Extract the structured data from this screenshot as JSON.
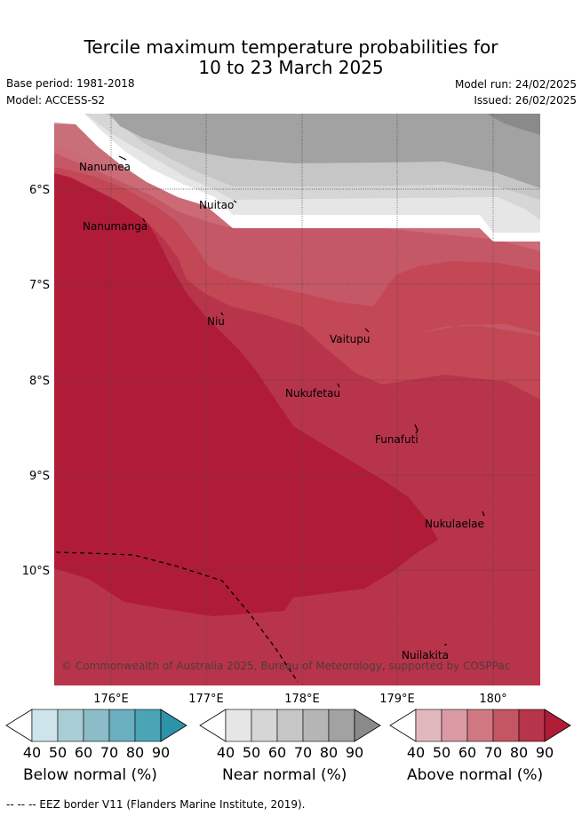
{
  "title_line1": "Tercile maximum temperature probabilities for",
  "title_line2": "10 to 23 March 2025",
  "base_period": "Base period: 1981-2018",
  "model": "Model: ACCESS-S2",
  "model_run": "Model run: 24/02/2025",
  "issued": "Issued: 26/02/2025",
  "latitude_labels": [
    "6°S",
    "7°S",
    "8°S",
    "9°S",
    "10°S"
  ],
  "longitude_labels": [
    "176°E",
    "177°E",
    "178°E",
    "179°E",
    "180°"
  ],
  "places": [
    "Nanumea",
    "Nuitao",
    "Nanumanga",
    "Niu",
    "Vaitupu",
    "Nukufetau",
    "Funafuti",
    "Nukulaelae",
    "Nuilakita"
  ],
  "copyright": "© Commonwealth of Australia 2025, Bureau of Meteorology, supported by COSPPac",
  "colorbars": [
    {
      "label": "Below normal (%)",
      "ticks": [
        "40",
        "50",
        "60",
        "70",
        "80",
        "90"
      ],
      "colors": [
        "#cde5ea",
        "#a9cdd4",
        "#8bbcc8",
        "#6aafbf",
        "#4aa4b5",
        "#2c93a8"
      ]
    },
    {
      "label": "Near normal (%)",
      "ticks": [
        "40",
        "50",
        "60",
        "70",
        "80",
        "90"
      ],
      "colors": [
        "#e6e6e6",
        "#d6d6d6",
        "#c6c6c6",
        "#b5b5b5",
        "#a2a2a2",
        "#8a8a8a"
      ]
    },
    {
      "label": "Above normal (%)",
      "ticks": [
        "40",
        "50",
        "60",
        "70",
        "80",
        "90"
      ],
      "colors": [
        "#e2b8bf",
        "#da9aa3",
        "#d07882",
        "#c45663",
        "#b8344a",
        "#b01c38"
      ]
    }
  ],
  "footer": "--  --  -- EEZ border V11 (Flanders Marine Institute, 2019)."
}
